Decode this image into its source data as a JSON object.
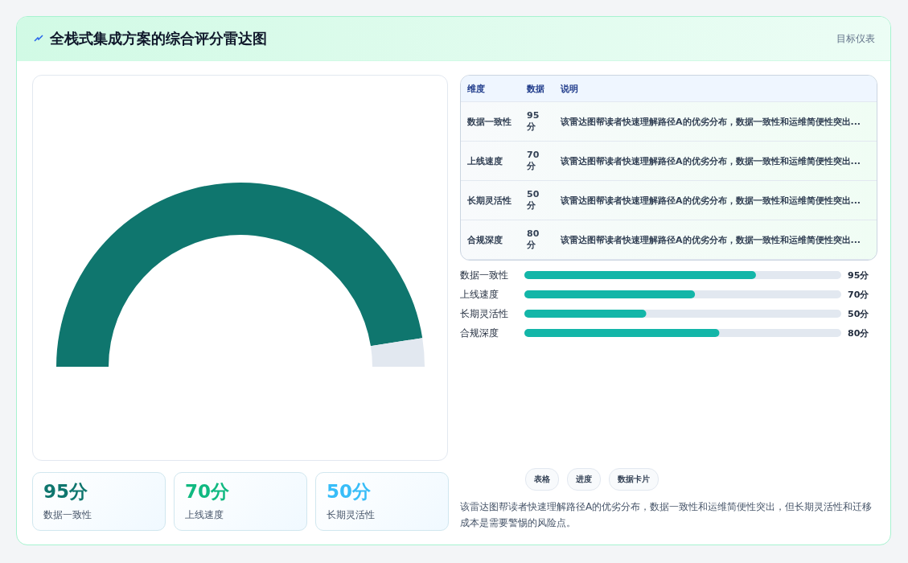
{
  "chart_data": [
    {
      "type": "other",
      "title": "全栈式集成方案的综合评分雷达图",
      "subtitle": "目标仪表"
    },
    {
      "type": "donut",
      "categories": [
        null,
        null
      ],
      "values": [
        95,
        5
      ],
      "colors": [
        "#0f766e",
        "#e2e8f0"
      ]
    },
    {
      "type": "other",
      "categories": [
        "维度",
        "数据",
        "说明"
      ],
      "annotations": [
        "数据一致性",
        "95分",
        "该雷达图帮读者快速理解路径A的优劣分布，数据一致性和运维简便性突出...",
        "上线速度",
        "70分",
        "该雷达图帮读者快速理解路径A的优劣分布，数据一致性和运维简便性突出...",
        "长期灵活性",
        "50分",
        "该雷达图帮读者快速理解路径A的优劣分布，数据一致性和运维简便性突出...",
        "合规深度",
        "80分",
        "该雷达图帮读者快速理解路径A的优劣分布，数据一致性和运维简便性突出..."
      ]
    },
    {
      "type": "bar",
      "orientation": "horizontal",
      "categories": [
        "数据一致性",
        "上线速度",
        "长期灵活性",
        "合规深度"
      ],
      "values": [
        95,
        70,
        50,
        80
      ],
      "value_labels": [
        "95分",
        "70分",
        "50分",
        "80分"
      ],
      "color": "#13b6a8",
      "xlim": [
        0,
        130
      ]
    },
    {
      "type": "other",
      "annotations": [
        "95分",
        "数据一致性",
        "70分",
        "上线速度",
        "50分",
        "长期灵活性"
      ],
      "colors": [
        "#0f766e",
        "#10b981",
        "#38bdf8"
      ]
    },
    {
      "type": "other",
      "annotations": [
        "表格",
        "进度",
        "数据卡片",
        "该雷达图帮读者快速理解路径A的优劣分布，数据一致性和运维简便性突出，但长期灵活性和迁移成本是需要警惕的风险点。"
      ]
    }
  ]
}
